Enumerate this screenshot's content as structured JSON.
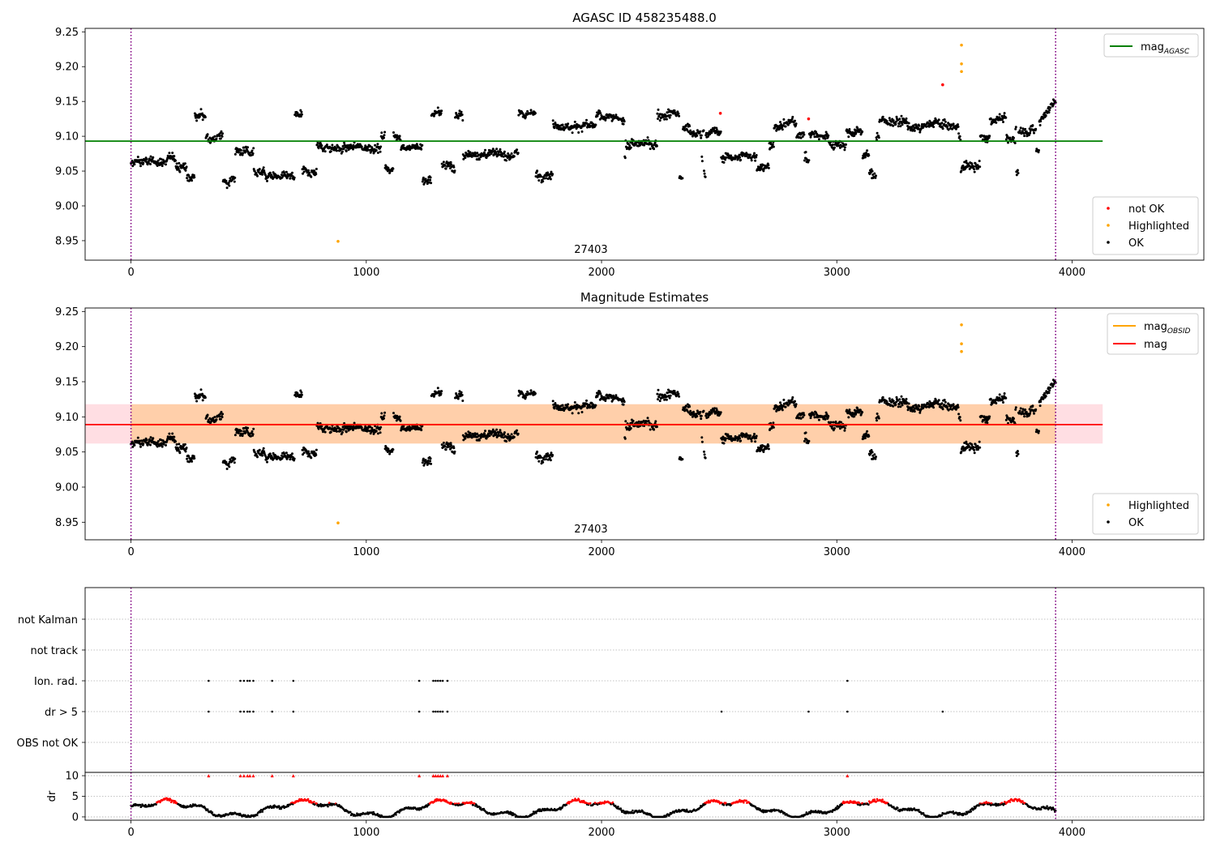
{
  "chart_data": [
    {
      "id": "p1",
      "type": "scatter",
      "title": "AGASC ID 458235488.0",
      "xlim": [
        -195,
        4560
      ],
      "ylim": [
        8.922,
        9.255
      ],
      "xticks": [
        0,
        1000,
        2000,
        3000,
        4000
      ],
      "yticks": [
        8.95,
        9.0,
        9.05,
        9.1,
        9.15,
        9.2,
        9.25
      ],
      "ytick_labels": [
        "8.95",
        "9.00",
        "9.05",
        "9.10",
        "9.15",
        "9.20",
        "9.25"
      ],
      "vlines": [
        0,
        3930
      ],
      "obsid_label": {
        "x": 1955,
        "y": 8.935,
        "text": "27403"
      },
      "series_line": {
        "name": "mag_AGASC",
        "label": "mag",
        "sub": "AGASC",
        "y": 9.093,
        "x0": -195,
        "x1": 4130,
        "color": "#008000"
      },
      "legend_lines": [
        {
          "label": "mag",
          "sub": "AGASC",
          "color": "#008000"
        }
      ],
      "legend_points": [
        {
          "label": "not OK",
          "color": "#ff0000"
        },
        {
          "label": "Highlighted",
          "color": "#ffa500"
        },
        {
          "label": "OK",
          "color": "#000000"
        }
      ],
      "highlighted": [
        [
          880,
          8.949
        ],
        [
          3530,
          9.231
        ],
        [
          3530,
          9.204
        ],
        [
          3530,
          9.193
        ]
      ],
      "not_ok": [
        [
          3450,
          9.174
        ],
        [
          2505,
          9.133
        ],
        [
          2880,
          9.125
        ]
      ]
    },
    {
      "id": "p2",
      "type": "scatter",
      "title": "Magnitude Estimates",
      "xlim": [
        -195,
        4560
      ],
      "ylim": [
        8.925,
        9.255
      ],
      "xticks": [
        0,
        1000,
        2000,
        3000,
        4000
      ],
      "yticks": [
        8.95,
        9.0,
        9.05,
        9.1,
        9.15,
        9.2,
        9.25
      ],
      "ytick_labels": [
        "8.95",
        "9.00",
        "9.05",
        "9.10",
        "9.15",
        "9.20",
        "9.25"
      ],
      "vlines": [
        0,
        3930
      ],
      "obsid_label": {
        "x": 1955,
        "y": 8.935,
        "text": "27403"
      },
      "band": {
        "y0": 9.062,
        "y1": 9.118,
        "x0": -195,
        "x1": 4130,
        "inner_x1": 3930
      },
      "series_line": {
        "name": "mag",
        "label": "mag",
        "y": 9.089,
        "x0": -195,
        "x1": 4130,
        "color": "#ff0000"
      },
      "obsid_line": {
        "name": "mag_OBSID",
        "y": 9.089,
        "x0": 0,
        "x1": 3930,
        "color": "#ffa500"
      },
      "legend_lines": [
        {
          "label": "mag",
          "sub": "OBSID",
          "color": "#ffa500"
        },
        {
          "label": "mag",
          "sub": "",
          "color": "#ff0000"
        }
      ],
      "legend_points": [
        {
          "label": "Highlighted",
          "color": "#ffa500"
        },
        {
          "label": "OK",
          "color": "#000000"
        }
      ],
      "highlighted": [
        [
          880,
          8.949
        ],
        [
          3530,
          9.231
        ],
        [
          3530,
          9.204
        ],
        [
          3530,
          9.193
        ]
      ]
    },
    {
      "id": "p3",
      "type": "scatter",
      "title": "",
      "xlim": [
        -195,
        4560
      ],
      "categories": [
        "not Kalman",
        "not track",
        "Ion. rad.",
        "dr > 5",
        "OBS not OK"
      ],
      "flag_points": {
        "Ion. rad.": [
          330,
          465,
          480,
          495,
          505,
          520,
          600,
          690,
          1225,
          1285,
          1295,
          1305,
          1315,
          1325,
          1345,
          3045
        ],
        "dr > 5": [
          330,
          465,
          480,
          495,
          505,
          520,
          600,
          690,
          1225,
          1285,
          1295,
          1305,
          1315,
          1325,
          1345,
          2510,
          2880,
          3045,
          3450
        ]
      },
      "vlines": [
        0,
        3930
      ]
    },
    {
      "id": "p4",
      "type": "scatter",
      "ylabel": "dr",
      "xlim": [
        -195,
        4560
      ],
      "ylim": [
        -0.8,
        10.8
      ],
      "xticks": [
        0,
        1000,
        2000,
        3000,
        4000
      ],
      "yticks": [
        0,
        5,
        10
      ],
      "ytick_labels": [
        "0",
        "5",
        "10"
      ],
      "vlines": [
        0,
        3930
      ],
      "capped_points": [
        330,
        465,
        480,
        495,
        505,
        520,
        600,
        690,
        1225,
        1285,
        1295,
        1305,
        1315,
        1325,
        1345,
        3045
      ]
    }
  ]
}
